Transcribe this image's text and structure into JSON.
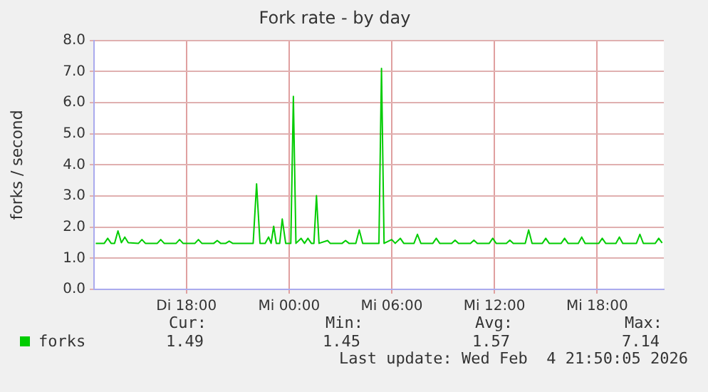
{
  "chart_data": {
    "type": "line",
    "title": "Fork rate - by day",
    "ylabel": "forks / second",
    "x": [
      "2026-02-03T12:42",
      "2026-02-03T13:12",
      "2026-02-03T13:24",
      "2026-02-03T13:36",
      "2026-02-03T13:48",
      "2026-02-03T14:00",
      "2026-02-03T14:12",
      "2026-02-03T14:24",
      "2026-02-03T14:36",
      "2026-02-03T15:12",
      "2026-02-03T15:24",
      "2026-02-03T15:36",
      "2026-02-03T16:18",
      "2026-02-03T16:30",
      "2026-02-03T16:42",
      "2026-02-03T17:24",
      "2026-02-03T17:36",
      "2026-02-03T17:48",
      "2026-02-03T18:30",
      "2026-02-03T18:42",
      "2026-02-03T18:54",
      "2026-02-03T19:36",
      "2026-02-03T19:48",
      "2026-02-03T20:00",
      "2026-02-03T20:18",
      "2026-02-03T20:30",
      "2026-02-03T20:42",
      "2026-02-03T21:54",
      "2026-02-03T22:06",
      "2026-02-03T22:18",
      "2026-02-03T22:36",
      "2026-02-03T22:48",
      "2026-02-03T22:57",
      "2026-02-03T23:06",
      "2026-02-03T23:15",
      "2026-02-03T23:27",
      "2026-02-03T23:36",
      "2026-02-03T23:48",
      "2026-02-04T00:06",
      "2026-02-04T00:15",
      "2026-02-04T00:24",
      "2026-02-04T00:42",
      "2026-02-04T00:54",
      "2026-02-04T01:06",
      "2026-02-04T01:18",
      "2026-02-04T01:27",
      "2026-02-04T01:36",
      "2026-02-04T01:45",
      "2026-02-04T02:15",
      "2026-02-04T02:24",
      "2026-02-04T03:06",
      "2026-02-04T03:18",
      "2026-02-04T03:30",
      "2026-02-04T03:54",
      "2026-02-04T04:06",
      "2026-02-04T04:18",
      "2026-02-04T05:15",
      "2026-02-04T05:24",
      "2026-02-04T05:33",
      "2026-02-04T06:00",
      "2026-02-04T06:12",
      "2026-02-04T06:30",
      "2026-02-04T06:42",
      "2026-02-04T07:18",
      "2026-02-04T07:30",
      "2026-02-04T07:42",
      "2026-02-04T08:24",
      "2026-02-04T08:36",
      "2026-02-04T08:48",
      "2026-02-04T09:30",
      "2026-02-04T09:42",
      "2026-02-04T09:54",
      "2026-02-04T10:36",
      "2026-02-04T10:48",
      "2026-02-04T11:00",
      "2026-02-04T11:42",
      "2026-02-04T11:54",
      "2026-02-04T12:06",
      "2026-02-04T12:42",
      "2026-02-04T12:54",
      "2026-02-04T13:06",
      "2026-02-04T13:48",
      "2026-02-04T14:00",
      "2026-02-04T14:12",
      "2026-02-04T14:48",
      "2026-02-04T15:00",
      "2026-02-04T15:12",
      "2026-02-04T15:54",
      "2026-02-04T16:06",
      "2026-02-04T16:18",
      "2026-02-04T16:54",
      "2026-02-04T17:06",
      "2026-02-04T17:18",
      "2026-02-04T18:06",
      "2026-02-04T18:18",
      "2026-02-04T18:30",
      "2026-02-04T19:06",
      "2026-02-04T19:18",
      "2026-02-04T19:30",
      "2026-02-04T20:18",
      "2026-02-04T20:30",
      "2026-02-04T20:42",
      "2026-02-04T21:24",
      "2026-02-04T21:36",
      "2026-02-04T21:48"
    ],
    "series": [
      {
        "name": "forks",
        "color": "#00cc00",
        "values": [
          1.48,
          1.48,
          1.64,
          1.48,
          1.48,
          1.88,
          1.5,
          1.68,
          1.5,
          1.48,
          1.6,
          1.48,
          1.48,
          1.6,
          1.48,
          1.48,
          1.6,
          1.48,
          1.48,
          1.6,
          1.48,
          1.48,
          1.57,
          1.48,
          1.48,
          1.55,
          1.48,
          1.48,
          3.39,
          1.48,
          1.48,
          1.68,
          1.48,
          2.03,
          1.48,
          1.48,
          2.26,
          1.48,
          1.48,
          6.2,
          1.48,
          1.64,
          1.48,
          1.64,
          1.48,
          1.48,
          3.01,
          1.48,
          1.57,
          1.48,
          1.48,
          1.57,
          1.48,
          1.48,
          1.91,
          1.48,
          1.48,
          7.1,
          1.48,
          1.6,
          1.48,
          1.64,
          1.48,
          1.48,
          1.77,
          1.48,
          1.48,
          1.64,
          1.48,
          1.48,
          1.58,
          1.48,
          1.48,
          1.58,
          1.48,
          1.48,
          1.64,
          1.48,
          1.48,
          1.58,
          1.48,
          1.48,
          1.91,
          1.48,
          1.48,
          1.64,
          1.48,
          1.48,
          1.64,
          1.48,
          1.48,
          1.68,
          1.48,
          1.48,
          1.64,
          1.48,
          1.48,
          1.68,
          1.48,
          1.48,
          1.77,
          1.48,
          1.48,
          1.64,
          1.49
        ]
      }
    ],
    "xlim": [
      "2026-02-03T12:36",
      "2026-02-04T21:54"
    ],
    "xticks": [
      {
        "value": "2026-02-03T18:00",
        "label": "Di 18:00"
      },
      {
        "value": "2026-02-04T00:00",
        "label": "Mi 00:00"
      },
      {
        "value": "2026-02-04T06:00",
        "label": "Mi 06:00"
      },
      {
        "value": "2026-02-04T12:00",
        "label": "Mi 12:00"
      },
      {
        "value": "2026-02-04T18:00",
        "label": "Mi 18:00"
      }
    ],
    "ylim": [
      0,
      8
    ],
    "yticks": [
      {
        "value": 0,
        "label": "0.0"
      },
      {
        "value": 1,
        "label": "1.0"
      },
      {
        "value": 2,
        "label": "2.0"
      },
      {
        "value": 3,
        "label": "3.0"
      },
      {
        "value": 4,
        "label": "4.0"
      },
      {
        "value": 5,
        "label": "5.0"
      },
      {
        "value": 6,
        "label": "6.0"
      },
      {
        "value": 7,
        "label": "7.0"
      },
      {
        "value": 8,
        "label": "8.0"
      }
    ],
    "grid": true,
    "legend": "bottom left",
    "marker": "none",
    "line_style": "solid",
    "annotations": [
      "Cur:",
      "Min:",
      "Avg:",
      "Max:",
      "1.49",
      "1.45",
      "1.57",
      "7.14",
      "Last update: Wed Feb  4 21:50:05 2026"
    ]
  }
}
